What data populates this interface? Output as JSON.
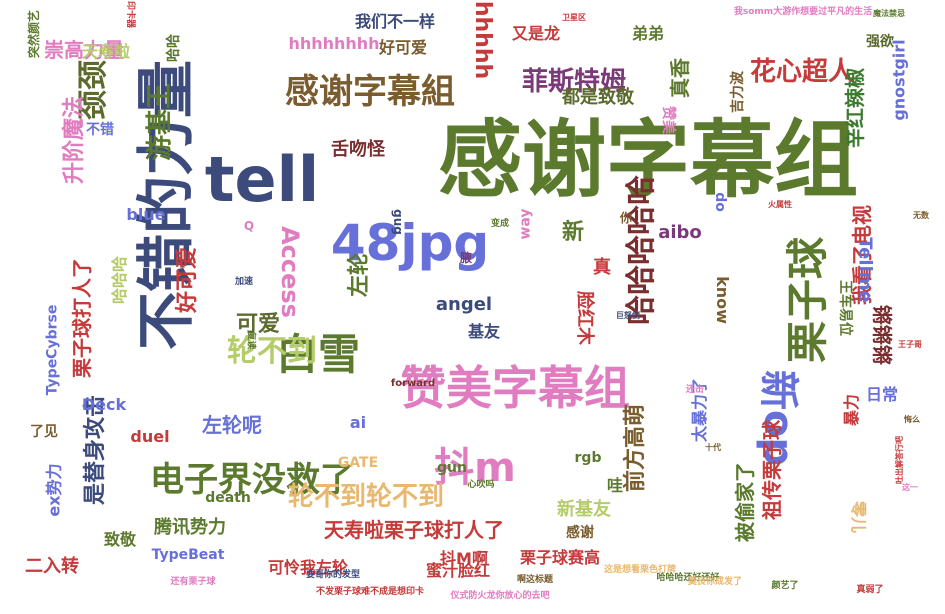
{
  "words": [
    {
      "text": "感谢字幕组",
      "color": "#5c7a2e"
    },
    {
      "text": "不错的力量",
      "color": "#3c4b7c"
    },
    {
      "text": "tell",
      "color": "#3c4b7c"
    },
    {
      "text": "48jpg",
      "color": "#6670d8"
    },
    {
      "text": "赞美字幕组",
      "color": "#e07cc0"
    },
    {
      "text": "电子界没救了",
      "color": "#5c7a2e"
    },
    {
      "text": "栗子球",
      "color": "#5c7a2e"
    },
    {
      "text": "白雪",
      "color": "#5c7a2e"
    },
    {
      "text": "抖m",
      "color": "#e07cc0"
    },
    {
      "text": "新op",
      "color": "#6670d8"
    },
    {
      "text": "感谢字幕組",
      "color": "#7a5c2e"
    },
    {
      "text": "哈哈哈哈哈",
      "color": "#7a2e2e"
    },
    {
      "text": "轮不到",
      "color": "#b5cc6a"
    },
    {
      "text": "轮不到轮不到",
      "color": "#e9b870"
    },
    {
      "text": "天寿啦栗子球打人了",
      "color": "#c53a3a"
    },
    {
      "text": "花心超人",
      "color": "#c53a3a"
    },
    {
      "text": "辛红辣椒",
      "color": "#3c7a2e"
    },
    {
      "text": "游基王",
      "color": "#5c7a2e"
    },
    {
      "text": "颈颈",
      "color": "#5c6a2e"
    },
    {
      "text": "升阶魔法",
      "color": "#e07cc0"
    },
    {
      "text": "菲斯特姆",
      "color": "#7a3a7a"
    },
    {
      "text": "Access",
      "color": "#e07cc0"
    },
    {
      "text": "好可爱",
      "color": "#c53a3a"
    },
    {
      "text": "可爱",
      "color": "#5c6a2e"
    },
    {
      "text": "左轮",
      "color": "#5c7a2e"
    },
    {
      "text": "栗子球打人了",
      "color": "#c53a3a"
    },
    {
      "text": "是替身攻击",
      "color": "#3c4b7c"
    },
    {
      "text": "左轮呢",
      "color": "#6670d8"
    },
    {
      "text": "前方高萌",
      "color": "#7a5c2e"
    },
    {
      "text": "祖传栗子球",
      "color": "#c53a3a"
    },
    {
      "text": "我看了电视",
      "color": "#c53a3a"
    },
    {
      "text": "腾讯势力",
      "color": "#5c7a2e"
    },
    {
      "text": "崇高力量",
      "color": "#e07cc0"
    },
    {
      "text": "天寿啦",
      "color": "#b5cc6a"
    },
    {
      "text": "我们不一样",
      "color": "#3c4b7c"
    },
    {
      "text": "好可爱",
      "color": "#7a5c2e"
    },
    {
      "text": "hhhhhhhh",
      "color": "#e07cc0"
    },
    {
      "text": "hhhhh",
      "color": "#c53a3a"
    },
    {
      "text": "又是龙",
      "color": "#c53a3a"
    },
    {
      "text": "弟弟",
      "color": "#5c7a2e"
    },
    {
      "text": "舌吻怪",
      "color": "#7a2e2e"
    },
    {
      "text": "真香",
      "color": "#5c7a2e"
    },
    {
      "text": "都是致敬",
      "color": "#5c6a2e"
    },
    {
      "text": "赞美",
      "color": "#e07cc0"
    },
    {
      "text": "gnostgirl",
      "color": "#6670d8"
    },
    {
      "text": "强欲",
      "color": "#5c6a2e"
    },
    {
      "text": "吉力波",
      "color": "#7a5c2e"
    },
    {
      "text": "新",
      "color": "#5c7a2e"
    },
    {
      "text": "真",
      "color": "#c53a3a"
    },
    {
      "text": "脸红木",
      "color": "#c53a3a"
    },
    {
      "text": "aibo",
      "color": "#7a3a7a"
    },
    {
      "text": "Tellme",
      "color": "#6670d8"
    },
    {
      "text": "王车易位",
      "color": "#5c7a2e"
    },
    {
      "text": "know",
      "color": "#7a5c2e"
    },
    {
      "text": "angel",
      "color": "#3c4b7c"
    },
    {
      "text": "基友",
      "color": "#3c4b7c"
    },
    {
      "text": "blue",
      "color": "#6670d8"
    },
    {
      "text": "哈哈哈",
      "color": "#b5cc6a"
    },
    {
      "text": "TypeCybrse",
      "color": "#6670d8"
    },
    {
      "text": "Deck",
      "color": "#6670d8"
    },
    {
      "text": "duel",
      "color": "#c53a3a"
    },
    {
      "text": "ai",
      "color": "#6670d8"
    },
    {
      "text": "GATE",
      "color": "#e9b870"
    },
    {
      "text": "gun",
      "color": "#5c7a2e"
    },
    {
      "text": "death",
      "color": "#5c7a2e"
    },
    {
      "text": "TypeBeat",
      "color": "#6670d8"
    },
    {
      "text": "可怜我左轮",
      "color": "#c53a3a"
    },
    {
      "text": "蜜汁脸红",
      "color": "#c53a3a"
    },
    {
      "text": "栗子球赛高",
      "color": "#c53a3a"
    },
    {
      "text": "感谢",
      "color": "#7a5c2e"
    },
    {
      "text": "被偷家了",
      "color": "#5c7a2e"
    },
    {
      "text": "新基友",
      "color": "#b5cc6a"
    },
    {
      "text": "太暴力了",
      "color": "#6670d8"
    },
    {
      "text": "锵锵锵",
      "color": "#7a2e2e"
    },
    {
      "text": "日常",
      "color": "#6670d8"
    },
    {
      "text": "暴力",
      "color": "#c53a3a"
    },
    {
      "text": "零儿",
      "color": "#e9b870"
    },
    {
      "text": "抖M啊",
      "color": "#c53a3a"
    },
    {
      "text": "哇",
      "color": "#5c7a2e"
    },
    {
      "text": "致敬",
      "color": "#5c7a2e"
    },
    {
      "text": "二入转",
      "color": "#c53a3a"
    },
    {
      "text": "ex势力",
      "color": "#6670d8"
    },
    {
      "text": "了见",
      "color": "#7a5c2e"
    },
    {
      "text": "不错",
      "color": "#6670d8"
    },
    {
      "text": "哈哈",
      "color": "#5c7a2e"
    },
    {
      "text": "op",
      "color": "#6670d8"
    },
    {
      "text": "way",
      "color": "#e07cc0"
    },
    {
      "text": "你",
      "color": "#7a5c2e"
    },
    {
      "text": "腋",
      "color": "#7a3a7a"
    },
    {
      "text": "Q",
      "color": "#e07cc0"
    },
    {
      "text": "gug",
      "color": "#3c4b7c"
    },
    {
      "text": "rgb",
      "color": "#5c7a2e"
    },
    {
      "text": "forward",
      "color": "#7a2e2e"
    },
    {
      "text": "突然颜艺",
      "color": "#5c7a2e"
    },
    {
      "text": "印卡器",
      "color": "#c53a3a"
    },
    {
      "text": "卫星区",
      "color": "#c53a3a"
    },
    {
      "text": "我somm大游作想要过平凡的生活",
      "color": "#e07cc0"
    },
    {
      "text": "魔法禁忌",
      "color": "#5c7a2e"
    },
    {
      "text": "还有栗子球",
      "color": "#e07cc0"
    },
    {
      "text": "要哥你的发型",
      "color": "#3c4b7c"
    },
    {
      "text": "不发栗子球难不成是想印卡",
      "color": "#c53a3a"
    },
    {
      "text": "仪式防火龙你放心的去吧",
      "color": "#e07cc0"
    },
    {
      "text": "哈哈哈还好还好",
      "color": "#5c7a2e"
    },
    {
      "text": "颜艺了",
      "color": "#5c7a2e"
    },
    {
      "text": "啊这标题",
      "color": "#7a5c2e"
    },
    {
      "text": "这是想看栗色打牌",
      "color": "#e9b870"
    },
    {
      "text": "莫良你成发了",
      "color": "#e9b870"
    },
    {
      "text": "加速",
      "color": "#3c4b7c"
    },
    {
      "text": "巨怒剑",
      "color": "#3c4b7c"
    },
    {
      "text": "心吹吗",
      "color": "#5c7a2e"
    },
    {
      "text": "十代",
      "color": "#7a5c2e"
    },
    {
      "text": "还击",
      "color": "#e07cc0"
    },
    {
      "text": "变成",
      "color": "#5c7a2e"
    },
    {
      "text": "复读",
      "color": "#5c7a2e"
    },
    {
      "text": "吐出解答行吧",
      "color": "#c53a3a"
    },
    {
      "text": "悔么",
      "color": "#7a5c2e"
    },
    {
      "text": "这一",
      "color": "#e07cc0"
    },
    {
      "text": "真弱了",
      "color": "#c53a3a"
    },
    {
      "text": "王子哥",
      "color": "#c53a3a"
    },
    {
      "text": "火属性",
      "color": "#c53a3a"
    },
    {
      "text": "无数",
      "color": "#7a5c2e"
    }
  ]
}
